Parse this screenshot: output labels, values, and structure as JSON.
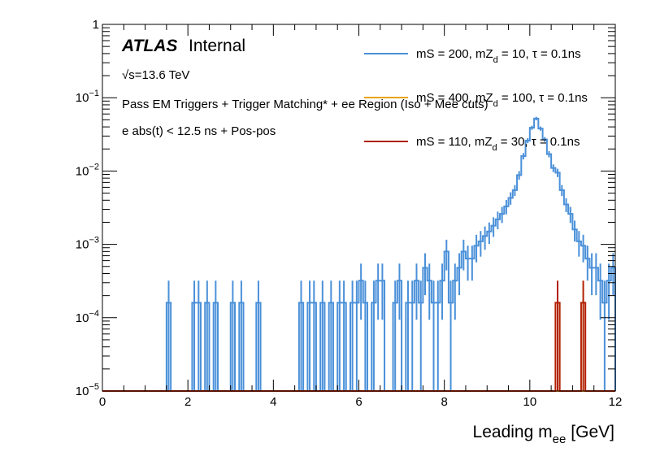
{
  "chart_data": {
    "type": "line",
    "xlabel": "Leading m",
    "xlabel_sub": "ee",
    "xlabel_unit": "[GeV]",
    "xlim": [
      0,
      12
    ],
    "ylim": [
      1e-05,
      1
    ],
    "y_scale": "log",
    "x_ticks": [
      "0",
      "2",
      "4",
      "6",
      "8",
      "10",
      "12"
    ],
    "y_ticks": [
      {
        "base": "10",
        "exp": "−5"
      },
      {
        "base": "10",
        "exp": "−4"
      },
      {
        "base": "10",
        "exp": "−3"
      },
      {
        "base": "10",
        "exp": "−2"
      },
      {
        "base": "10",
        "exp": "−1"
      },
      {
        "base": "1",
        "exp": ""
      }
    ],
    "annotations": {
      "atlas": "ATLAS",
      "internal": "Internal",
      "energy": "√s=13.6 TeV",
      "line1": "Pass EM Triggers + Trigger Matching* + ee Region (Iso + Mee cuts)",
      "line2": "e abs(t) < 12.5 ns + Pos-pos"
    },
    "legend_position": "top-right",
    "series": [
      {
        "name": "mS = 200, mZ",
        "name_sub": "d",
        "name_rest": " = 10, τ = 0.1ns",
        "color": "#4a90d9",
        "bin_width": 0.1,
        "bins": [
          [
            1.5,
            0.00016
          ],
          [
            2.1,
            0.00016
          ],
          [
            2.2,
            0.00016
          ],
          [
            2.4,
            0.00016
          ],
          [
            2.6,
            0.00016
          ],
          [
            3.0,
            0.00016
          ],
          [
            3.2,
            0.00016
          ],
          [
            3.6,
            0.00016
          ],
          [
            4.6,
            0.00016
          ],
          [
            4.8,
            0.00016
          ],
          [
            4.9,
            0.00016
          ],
          [
            5.1,
            0.00016
          ],
          [
            5.3,
            0.00016
          ],
          [
            5.5,
            0.00016
          ],
          [
            5.6,
            0.00016
          ],
          [
            5.8,
            0.00016
          ],
          [
            5.9,
            0.00016
          ],
          [
            6.0,
            0.00032
          ],
          [
            6.1,
            0.00016
          ],
          [
            6.3,
            0.00016
          ],
          [
            6.4,
            0.00032
          ],
          [
            6.5,
            0.00032
          ],
          [
            6.8,
            0.00016
          ],
          [
            6.9,
            0.00032
          ],
          [
            7.1,
            0.00016
          ],
          [
            7.2,
            0.00016
          ],
          [
            7.3,
            0.00032
          ],
          [
            7.4,
            0.00016
          ],
          [
            7.5,
            0.00048
          ],
          [
            7.6,
            0.00032
          ],
          [
            7.7,
            0.00016
          ],
          [
            7.8,
            0.00016
          ],
          [
            7.9,
            0.00032
          ],
          [
            8.0,
            0.0008
          ],
          [
            8.1,
            0.00016
          ],
          [
            8.2,
            0.00032
          ],
          [
            8.3,
            0.00048
          ],
          [
            8.4,
            0.0008
          ],
          [
            8.5,
            0.00064
          ],
          [
            8.6,
            0.00064
          ],
          [
            8.7,
            0.00096
          ],
          [
            8.8,
            0.0011
          ],
          [
            8.9,
            0.0013
          ],
          [
            9.0,
            0.0015
          ],
          [
            9.1,
            0.0018
          ],
          [
            9.2,
            0.0022
          ],
          [
            9.3,
            0.0026
          ],
          [
            9.4,
            0.0033
          ],
          [
            9.5,
            0.0043
          ],
          [
            9.6,
            0.0055
          ],
          [
            9.7,
            0.0088
          ],
          [
            9.8,
            0.016
          ],
          [
            9.9,
            0.026
          ],
          [
            10.0,
            0.039
          ],
          [
            10.1,
            0.052
          ],
          [
            10.2,
            0.038
          ],
          [
            10.3,
            0.027
          ],
          [
            10.4,
            0.017
          ],
          [
            10.5,
            0.011
          ],
          [
            10.6,
            0.0095
          ],
          [
            10.7,
            0.0055
          ],
          [
            10.8,
            0.0035
          ],
          [
            10.9,
            0.0026
          ],
          [
            11.0,
            0.0016
          ],
          [
            11.1,
            0.0011
          ],
          [
            11.2,
            0.00096
          ],
          [
            11.3,
            0.00064
          ],
          [
            11.4,
            0.00048
          ],
          [
            11.5,
            0.00048
          ],
          [
            11.6,
            0.00032
          ],
          [
            11.7,
            0.00016
          ],
          [
            11.8,
            0.00032
          ],
          [
            11.9,
            0.00048
          ]
        ]
      },
      {
        "name": "mS = 400, mZ",
        "name_sub": "d",
        "name_rest": " = 100, τ = 0.1ns",
        "color": "#e8a317",
        "bin_width": 0.1,
        "bins": []
      },
      {
        "name": "mS = 110, mZ",
        "name_sub": "d",
        "name_rest": " = 30, τ = 0.1ns",
        "color": "#b22000",
        "bin_width": 0.1,
        "bins": [
          [
            10.6,
            0.00016
          ],
          [
            11.2,
            0.00016
          ]
        ]
      }
    ]
  }
}
